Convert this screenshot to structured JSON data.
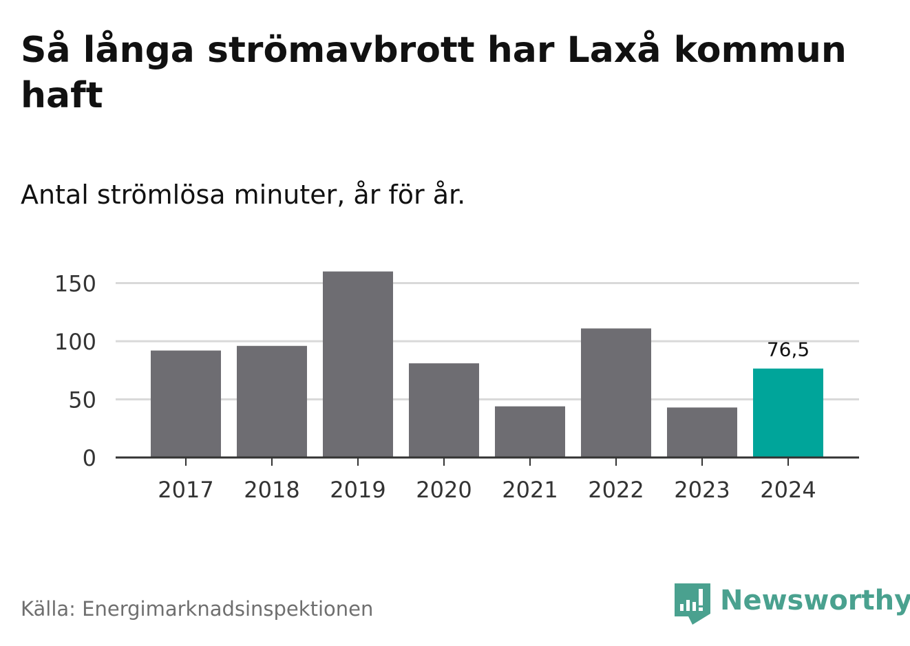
{
  "header": {
    "title": "Så långa strömavbrott har Laxå kommun haft",
    "subtitle": "Antal strömlösa minuter, år för år."
  },
  "footer": {
    "source": "Källa: Energimarknadsinspektionen",
    "brand": "Newsworthy"
  },
  "colors": {
    "bar": "#6e6d72",
    "highlight": "#00a59a",
    "grid": "#d9d9d9",
    "axis": "#333333",
    "brand": "#4aa18f"
  },
  "chart_data": {
    "type": "bar",
    "title": "Så långa strömavbrott har Laxå kommun haft",
    "subtitle": "Antal strömlösa minuter, år för år.",
    "xlabel": "",
    "ylabel": "",
    "categories": [
      "2017",
      "2018",
      "2019",
      "2020",
      "2021",
      "2022",
      "2023",
      "2024"
    ],
    "values": [
      92,
      96,
      160,
      81,
      44,
      111,
      43,
      76.5
    ],
    "highlight_index": 7,
    "data_labels": [
      {
        "index": 7,
        "text": "76,5"
      }
    ],
    "ylim": [
      0,
      160
    ],
    "yticks": [
      0,
      50,
      100,
      150
    ],
    "ytick_labels": [
      "0",
      "50",
      "100",
      "150"
    ],
    "grid": true
  }
}
